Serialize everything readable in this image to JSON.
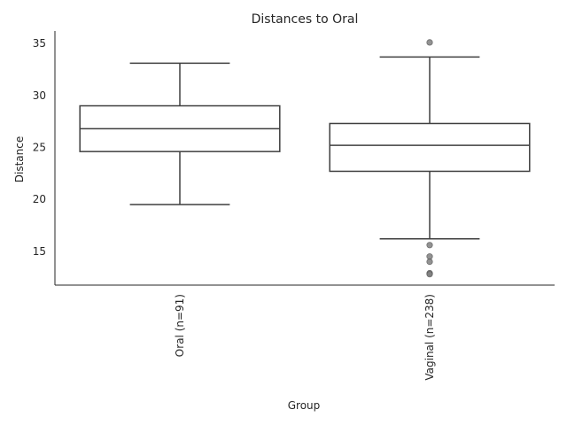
{
  "chart_data": {
    "type": "box",
    "title": "Distances to Oral",
    "xlabel": "Group",
    "ylabel": "Distance",
    "categories": [
      "Oral (n=91)",
      "Vaginal (n=238)"
    ],
    "boxes": [
      {
        "name": "Oral (n=91)",
        "whisker_low": 19.5,
        "q1": 24.6,
        "median": 26.8,
        "q3": 29.0,
        "whisker_high": 33.1,
        "outliers": []
      },
      {
        "name": "Vaginal (n=238)",
        "whisker_low": 16.2,
        "q1": 22.7,
        "median": 25.2,
        "q3": 27.3,
        "whisker_high": 33.7,
        "outliers": [
          35.1,
          15.6,
          14.5,
          14.0,
          12.9,
          12.8
        ]
      }
    ],
    "yticks": [
      15,
      20,
      25,
      30,
      35
    ],
    "ylim": [
      11.75,
      36.2
    ],
    "grid": false
  }
}
